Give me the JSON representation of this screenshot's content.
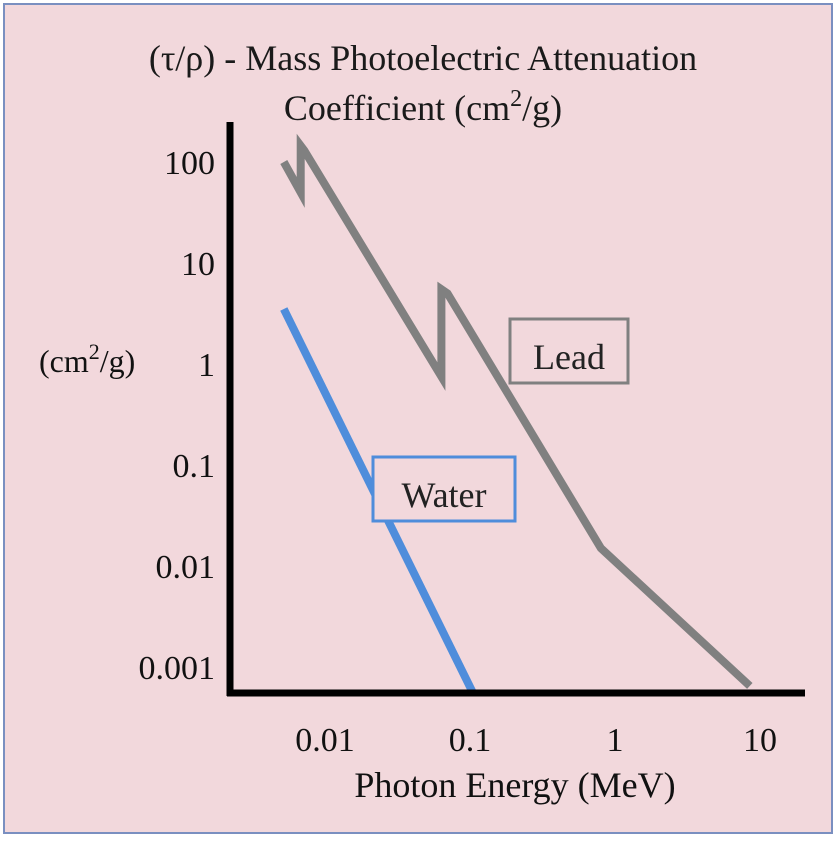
{
  "chart_data": {
    "type": "line",
    "title_line1": "(τ/ρ) - Mass Photoelectric Attenuation",
    "title_line2_pre": "Coefficient (cm",
    "title_line2_sup": "2",
    "title_line2_post": "/g)",
    "xlabel": "Photon Energy (MeV)",
    "ylabel_pre": "(cm",
    "ylabel_sup": "2",
    "ylabel_post": "/g)",
    "x_scale": "log",
    "y_scale": "log",
    "xlim": [
      0.005,
      20
    ],
    "ylim": [
      0.0006,
      200
    ],
    "x_ticks": [
      {
        "value": 0.01,
        "label": "0.01"
      },
      {
        "value": 0.1,
        "label": "0.1"
      },
      {
        "value": 1,
        "label": "1"
      },
      {
        "value": 10,
        "label": "10"
      }
    ],
    "y_ticks": [
      {
        "value": 100,
        "label": "100"
      },
      {
        "value": 10,
        "label": "10"
      },
      {
        "value": 1,
        "label": "1"
      },
      {
        "value": 0.1,
        "label": "0.1"
      },
      {
        "value": 0.01,
        "label": "0.01"
      },
      {
        "value": 0.001,
        "label": "0.001"
      }
    ],
    "grid": false,
    "series": [
      {
        "name": "Lead",
        "color": "#808080",
        "points": [
          [
            0.0052,
            100
          ],
          [
            0.0068,
            50
          ],
          [
            0.0068,
            145
          ],
          [
            0.0072,
            130
          ],
          [
            0.0635,
            0.75
          ],
          [
            0.0635,
            5.5
          ],
          [
            0.07,
            5
          ],
          [
            0.8,
            0.015
          ],
          [
            8.5,
            0.00065
          ]
        ]
      },
      {
        "name": "Water",
        "color": "#4f8ddb",
        "points": [
          [
            0.0052,
            3.5
          ],
          [
            0.105,
            0.00055
          ]
        ]
      }
    ]
  }
}
